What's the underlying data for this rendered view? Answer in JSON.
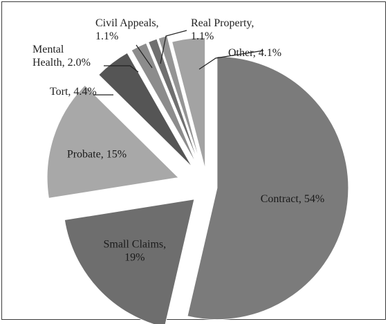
{
  "chart_data": {
    "type": "pie",
    "title": "",
    "series": [
      {
        "slices": [
          {
            "label": "Contract",
            "value": 54,
            "display": "Contract, 54%",
            "color": "#7b7b7b"
          },
          {
            "label": "Small Claims",
            "value": 19,
            "display_lines": [
              "Small Claims,",
              "19%"
            ],
            "color": "#6e6e6e"
          },
          {
            "label": "Probate",
            "value": 15,
            "display": "Probate, 15%",
            "color": "#a8a8a8"
          },
          {
            "label": "Tort",
            "value": 4.4,
            "display": "Tort, 4.4%",
            "color": "#555555"
          },
          {
            "label": "Mental Health",
            "value": 2.0,
            "display_lines": [
              "Mental",
              "Health, 2.0%"
            ],
            "color": "#8c8c8c"
          },
          {
            "label": "Civil Appeals",
            "value": 1.1,
            "display_lines": [
              "Civil Appeals,",
              "1.1%"
            ],
            "color": "#6f6f6f"
          },
          {
            "label": "Real Property",
            "value": 1.1,
            "display_lines": [
              "Real Property,",
              "1.1%"
            ],
            "color": "#959595"
          },
          {
            "label": "Other",
            "value": 4.1,
            "display": "Other, 4.1%",
            "color": "#a3a3a3"
          }
        ]
      }
    ]
  }
}
